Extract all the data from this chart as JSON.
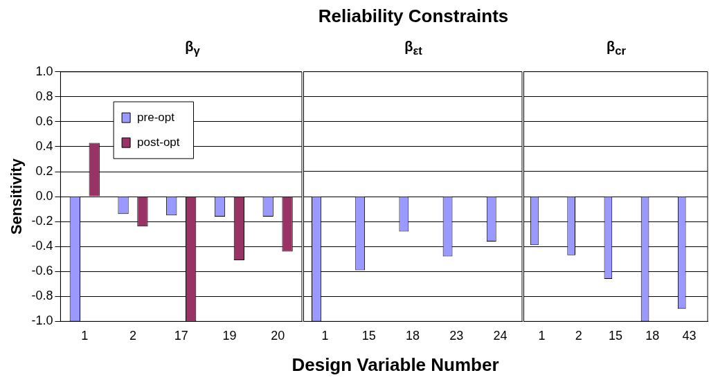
{
  "chart_data": [
    {
      "type": "bar",
      "subtitle": "β$_{γ}$",
      "xlabel": "Design Variable Number",
      "ylabel": "Sensitivity",
      "categories": [
        "1",
        "2",
        "17",
        "19",
        "20"
      ],
      "series": [
        {
          "name": "pre-opt",
          "color": "#9999ff",
          "values": [
            -1.0,
            -0.14,
            -0.15,
            -0.16,
            -0.16
          ]
        },
        {
          "name": "post-opt",
          "color": "#993366",
          "values": [
            0.43,
            -0.24,
            -1.0,
            -0.51,
            -0.44
          ]
        }
      ],
      "ylim": [
        -1.0,
        1.0
      ],
      "yticks": [
        {
          "value": -1.0,
          "label": "-1.0"
        },
        {
          "value": -0.8,
          "label": "-0.8"
        },
        {
          "value": -0.6,
          "label": "-0.6"
        },
        {
          "value": -0.4,
          "label": "-0.4"
        },
        {
          "value": -0.2,
          "label": "-0.2"
        },
        {
          "value": 0,
          "label": "0.0"
        },
        {
          "value": 0.2,
          "label": "0.2"
        },
        {
          "value": 0.4,
          "label": "0.4"
        },
        {
          "value": 0.6,
          "label": "0.6"
        },
        {
          "value": 0.8,
          "label": "0.8"
        },
        {
          "value": 1.0,
          "label": "1.0"
        }
      ],
      "grid": "y",
      "legend": "top left"
    },
    {
      "type": "bar",
      "title": "Reliability Constraints",
      "subtitle": "β$_{εt}$",
      "categories": [
        "1",
        "15",
        "18",
        "23",
        "24"
      ],
      "series": [
        {
          "color": "#9999ff",
          "values": [
            -1.0,
            -0.59,
            -0.28,
            -0.48,
            -0.36
          ]
        },
        {
          "color": "#993366",
          "values": [
            null,
            null,
            null,
            null,
            null
          ]
        }
      ],
      "ylim": [
        -1.0,
        1.0
      ],
      "grid": "y",
      "tick_labels": "x"
    },
    {
      "type": "bar",
      "subtitle": "β$_{cr}$",
      "categories": [
        "1",
        "2",
        "15",
        "18",
        "43"
      ],
      "series": [
        {
          "color": "#9999ff",
          "values": [
            -0.39,
            -0.47,
            -0.66,
            -1.0,
            -0.9
          ]
        },
        {
          "color": "#993366",
          "values": [
            null,
            null,
            null,
            null,
            null
          ]
        }
      ],
      "ylim": [
        -1.0,
        1.0
      ],
      "grid": "y",
      "tick_labels": "x"
    }
  ]
}
